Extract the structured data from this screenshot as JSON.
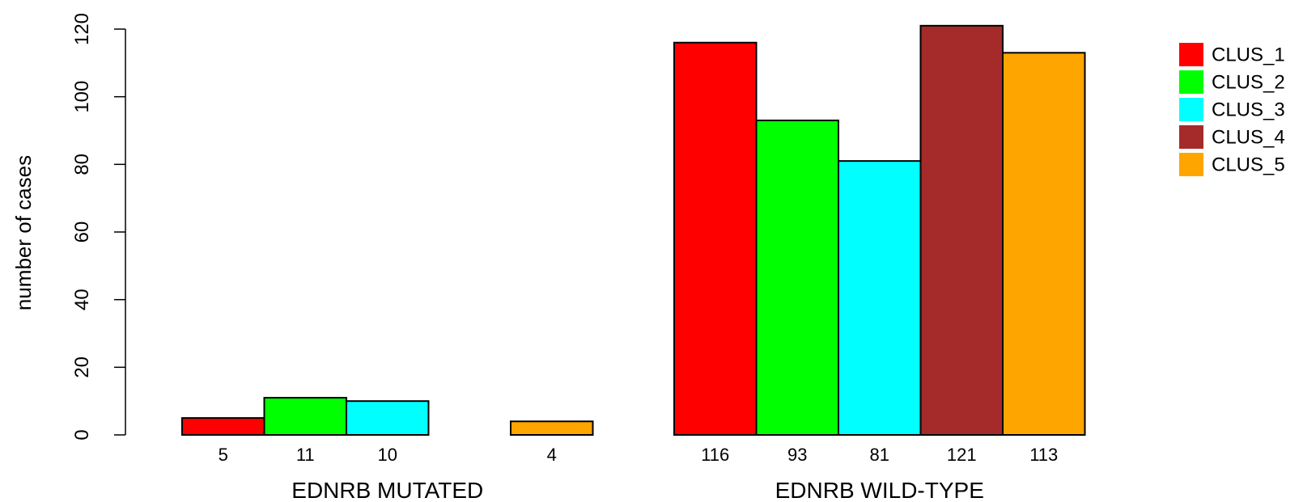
{
  "chart_data": {
    "type": "bar",
    "ylabel": "number of cases",
    "ylim": [
      0,
      120
    ],
    "yticks": [
      0,
      20,
      40,
      60,
      80,
      100,
      120
    ],
    "grid": false,
    "legend_position": "top-right",
    "series_names": [
      "CLUS_1",
      "CLUS_2",
      "CLUS_3",
      "CLUS_4",
      "CLUS_5"
    ],
    "colors": [
      "#ff0000",
      "#00ff00",
      "#00ffff",
      "#a52a2a",
      "#ffa500"
    ],
    "groups": [
      {
        "label": "EDNRB MUTATED",
        "values": [
          5,
          11,
          10,
          0,
          4
        ],
        "value_labels": [
          "5",
          "11",
          "10",
          "",
          "4"
        ]
      },
      {
        "label": "EDNRB WILD-TYPE",
        "values": [
          116,
          93,
          81,
          121,
          113
        ],
        "value_labels": [
          "116",
          "93",
          "81",
          "121",
          "113"
        ]
      }
    ]
  }
}
